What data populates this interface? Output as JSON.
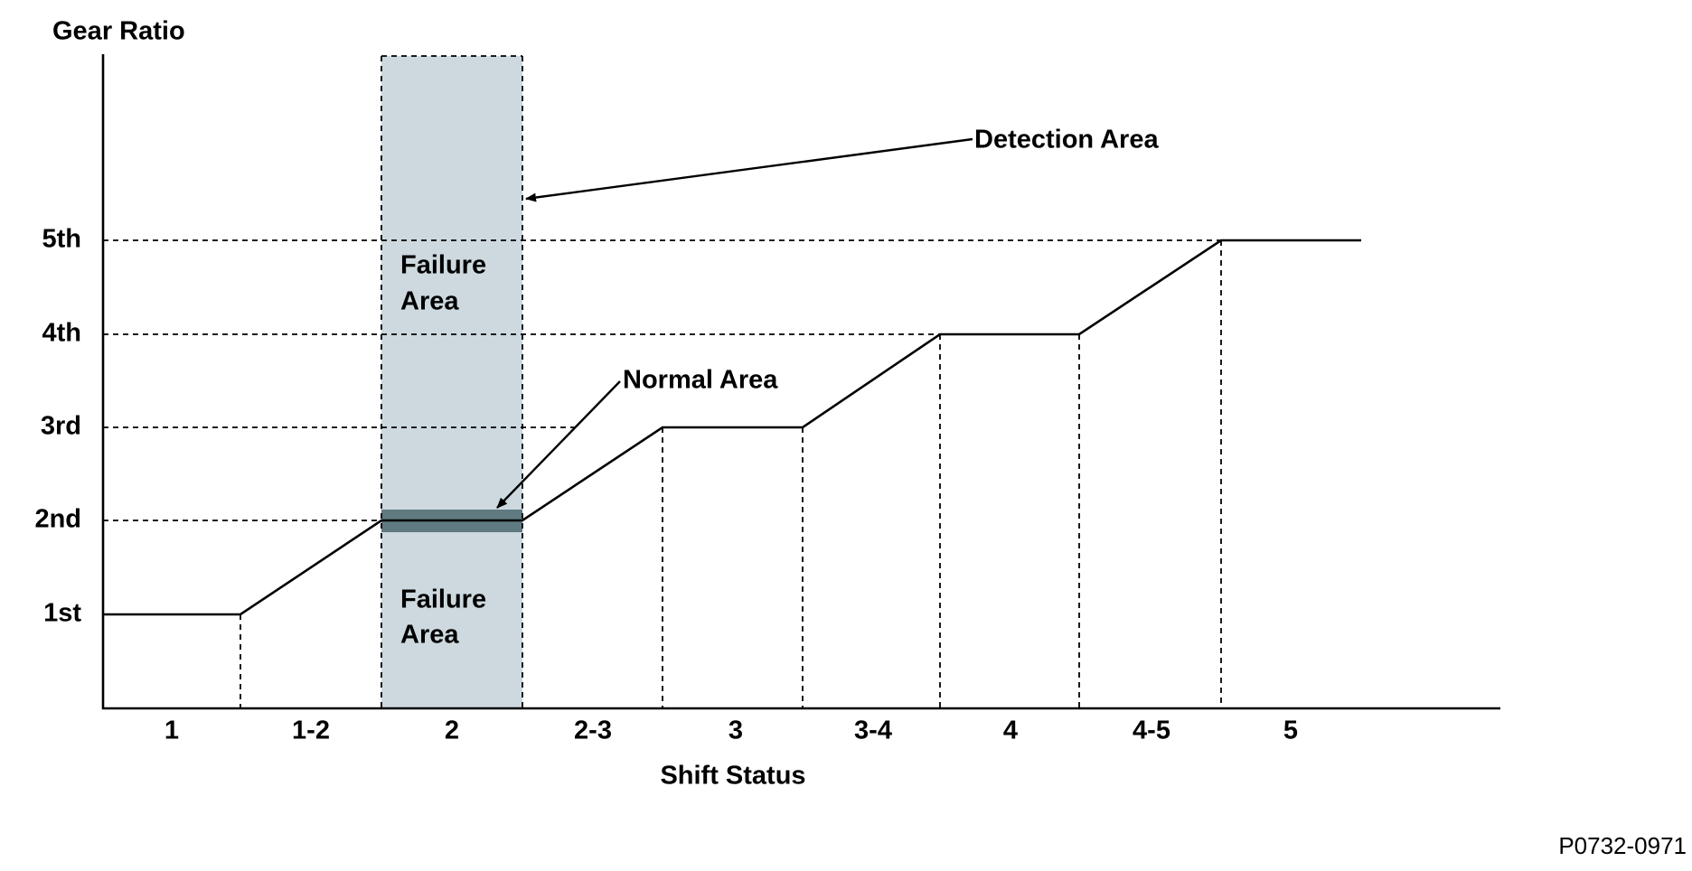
{
  "y_axis": {
    "title": "Gear Ratio",
    "labels": [
      "5th",
      "4th",
      "3rd",
      "2nd",
      "1st"
    ]
  },
  "x_axis": {
    "title": "Shift Status",
    "labels": [
      "1",
      "1-2",
      "2",
      "2-3",
      "3",
      "3-4",
      "4",
      "4-5",
      "5"
    ]
  },
  "annotations": {
    "detection_area": "Detection Area",
    "normal_area": "Normal Area",
    "failure_area_upper": [
      "Failure",
      "Area"
    ],
    "failure_area_lower": [
      "Failure",
      "Area"
    ]
  },
  "figure_id": "P0732-0971"
}
